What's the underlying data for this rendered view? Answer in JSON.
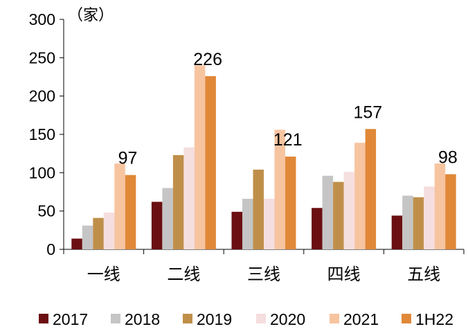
{
  "chart_data": {
    "type": "bar",
    "title": "",
    "unit_label": "（家）",
    "xlabel": "",
    "ylabel": "",
    "ylim": [
      0,
      300
    ],
    "yticks": [
      0,
      50,
      100,
      150,
      200,
      250,
      300
    ],
    "categories": [
      "一线",
      "二线",
      "三线",
      "四线",
      "五线"
    ],
    "series": [
      {
        "name": "2017",
        "color": "#6b0f12",
        "values": [
          14,
          62,
          49,
          54,
          44
        ]
      },
      {
        "name": "2018",
        "color": "#c5c5c5",
        "values": [
          31,
          80,
          66,
          96,
          70
        ]
      },
      {
        "name": "2019",
        "color": "#bf8f4a",
        "values": [
          41,
          123,
          104,
          88,
          68
        ]
      },
      {
        "name": "2020",
        "color": "#f5dede",
        "values": [
          48,
          133,
          66,
          101,
          82
        ]
      },
      {
        "name": "2021",
        "color": "#f7c4a0",
        "values": [
          112,
          240,
          156,
          139,
          112
        ]
      },
      {
        "name": "1H22",
        "color": "#e08838",
        "values": [
          97,
          226,
          121,
          157,
          98
        ]
      }
    ],
    "data_labels": {
      "series": "1H22",
      "values": [
        "97",
        "226",
        "121",
        "157",
        "98"
      ]
    },
    "legend": "bottom",
    "grid": false
  }
}
